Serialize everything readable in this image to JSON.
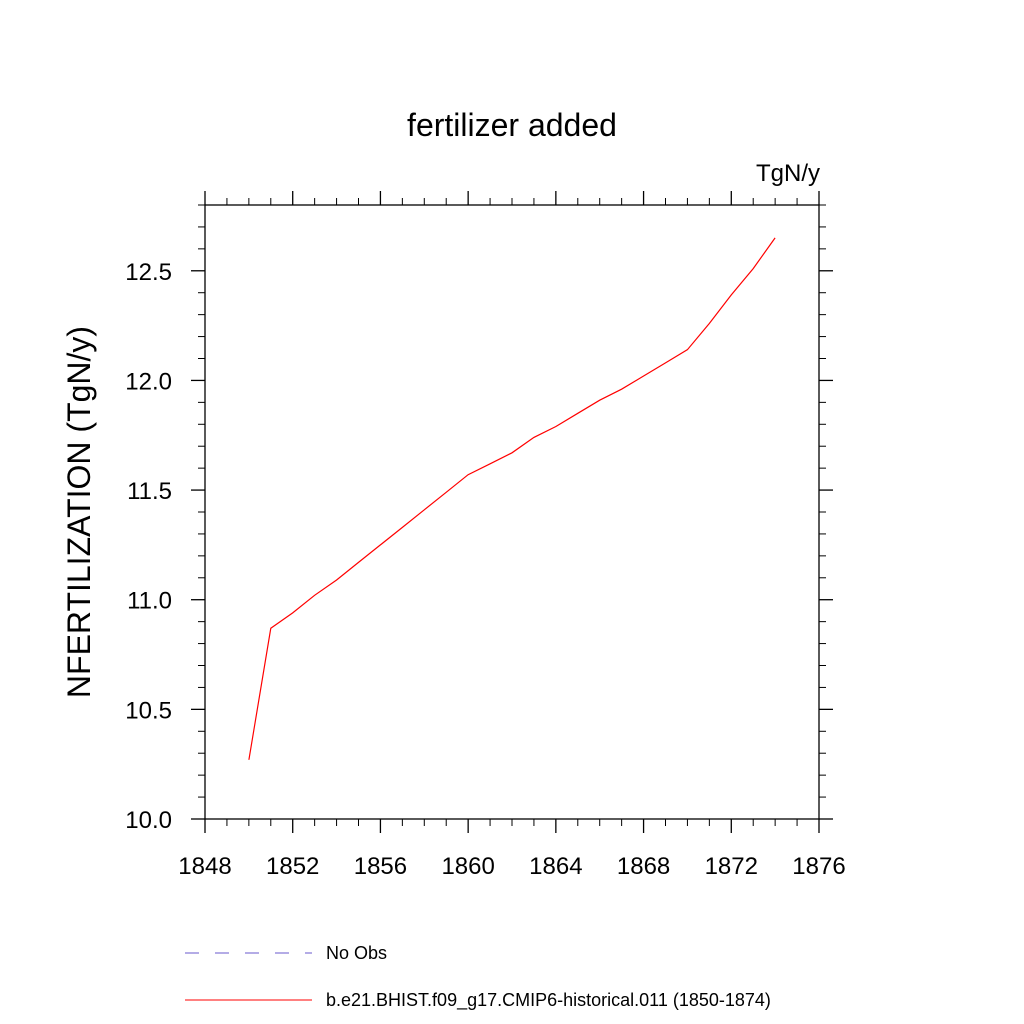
{
  "chart_data": {
    "type": "line",
    "title": "fertilizer added",
    "units_label": "TgN/y",
    "ylabel": "NFERTILIZATION  (TgN/y)",
    "xlabel": "",
    "xlim": [
      1848,
      1876
    ],
    "ylim": [
      10.0,
      12.8
    ],
    "x_ticks": [
      1848,
      1852,
      1856,
      1860,
      1864,
      1868,
      1872,
      1876
    ],
    "x_tick_labels": [
      "1848",
      "1852",
      "1856",
      "1860",
      "1864",
      "1868",
      "1872",
      "1876"
    ],
    "y_ticks": [
      10.0,
      10.5,
      11.0,
      11.5,
      12.0,
      12.5
    ],
    "y_tick_labels": [
      "10.0",
      "10.5",
      "11.0",
      "11.5",
      "12.0",
      "12.5"
    ],
    "grid": false,
    "legend_position": "bottom",
    "series": [
      {
        "name": "b.e21.BHIST.f09_g17.CMIP6-historical.011 (1850-1874)",
        "color": "#ff0000",
        "style": "solid",
        "x": [
          1850,
          1851,
          1852,
          1853,
          1854,
          1855,
          1856,
          1857,
          1858,
          1859,
          1860,
          1861,
          1862,
          1863,
          1864,
          1865,
          1866,
          1867,
          1868,
          1869,
          1870,
          1871,
          1872,
          1873,
          1874
        ],
        "y": [
          10.27,
          10.87,
          10.94,
          11.02,
          11.09,
          11.17,
          11.25,
          11.33,
          11.41,
          11.49,
          11.57,
          11.62,
          11.67,
          11.74,
          11.79,
          11.85,
          11.91,
          11.96,
          12.02,
          12.08,
          12.14,
          12.26,
          12.39,
          12.51,
          12.65
        ]
      }
    ],
    "legend": [
      {
        "label": "No Obs",
        "color": "#6a5acd",
        "style": "dashed"
      },
      {
        "label": "b.e21.BHIST.f09_g17.CMIP6-historical.011 (1850-1874)",
        "color": "#ff0000",
        "style": "solid"
      }
    ]
  }
}
